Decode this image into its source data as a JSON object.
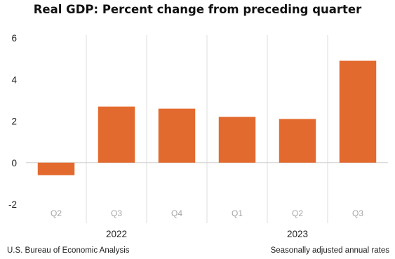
{
  "chart_data": {
    "type": "bar",
    "title": "Real GDP:  Percent change from preceding quarter",
    "categories": [
      "Q2",
      "Q3",
      "Q4",
      "Q1",
      "Q2",
      "Q3"
    ],
    "groups": [
      {
        "label": "2022",
        "categories": [
          "Q2",
          "Q3",
          "Q4"
        ]
      },
      {
        "label": "2023",
        "categories": [
          "Q1",
          "Q2",
          "Q3"
        ]
      }
    ],
    "series": [
      {
        "values": [
          -0.6,
          2.7,
          2.6,
          2.2,
          2.1,
          4.9
        ]
      }
    ],
    "ylim": [
      -2,
      6
    ],
    "yticks": [
      6,
      4,
      2,
      0,
      -2
    ],
    "xlabel": "",
    "ylabel": "",
    "bar_color": "#E36A2E",
    "grid": "vertical separators between categories",
    "legend": "none"
  },
  "footer": {
    "source": "U.S. Bureau of Economic Analysis",
    "note": "Seasonally adjusted annual rates"
  }
}
